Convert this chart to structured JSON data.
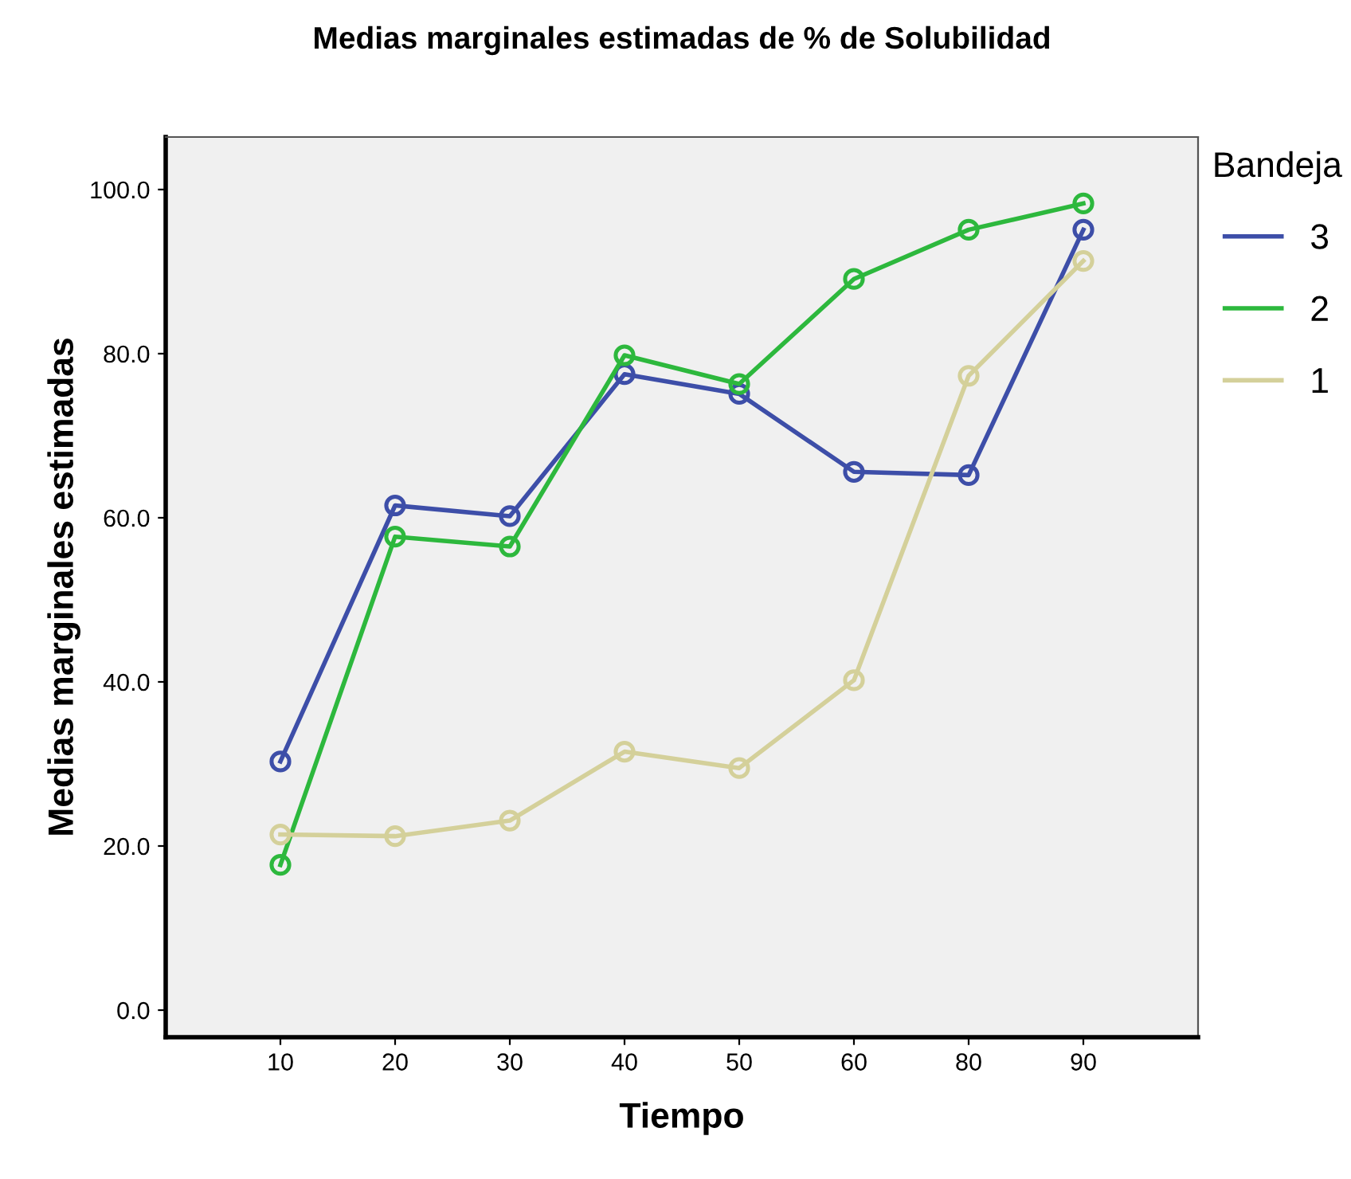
{
  "chart_data": {
    "type": "line",
    "title": "Medias marginales estimadas de % de Solubilidad",
    "xlabel": "Tiempo",
    "ylabel": "Medias marginales estimadas",
    "legend_title": "Bandeja",
    "categories": [
      "10",
      "20",
      "30",
      "40",
      "50",
      "60",
      "80",
      "90"
    ],
    "series": [
      {
        "name": "3",
        "color": "#3d4ea8",
        "values": [
          30.3,
          61.5,
          60.2,
          77.5,
          75.1,
          65.6,
          65.2,
          95.1
        ]
      },
      {
        "name": "2",
        "color": "#2db83d",
        "values": [
          17.7,
          57.7,
          56.5,
          79.8,
          76.3,
          89.1,
          95.1,
          98.3
        ]
      },
      {
        "name": "1",
        "color": "#d4d09a",
        "values": [
          21.4,
          21.2,
          23.1,
          31.5,
          29.5,
          40.2,
          77.3,
          91.3
        ]
      }
    ],
    "ylim": [
      -3.3,
      106.4
    ],
    "yticks": [
      {
        "value": 0,
        "label": "0.0"
      },
      {
        "value": 20,
        "label": "20.0"
      },
      {
        "value": 40,
        "label": "40.0"
      },
      {
        "value": 60,
        "label": "60.0"
      },
      {
        "value": 80,
        "label": "80.0"
      },
      {
        "value": 100,
        "label": "100.0"
      }
    ],
    "marker": "circle",
    "line_style": "solid",
    "grid": false,
    "legend": "right"
  }
}
